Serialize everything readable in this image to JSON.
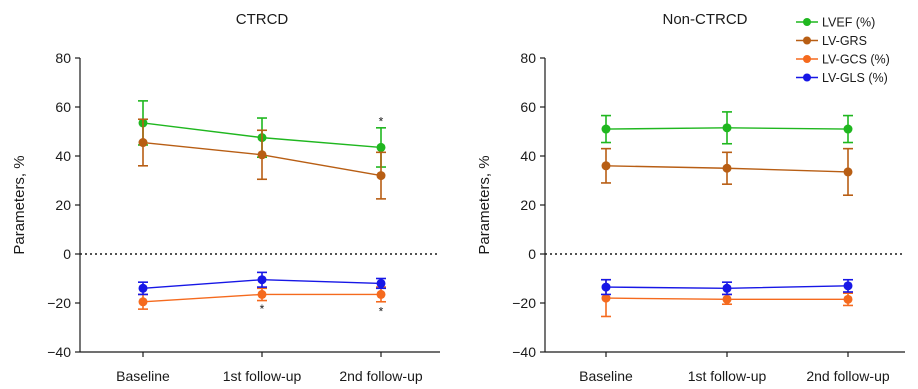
{
  "chart_data": [
    {
      "type": "line",
      "title": "CTRCD",
      "ylabel": "Parameters, %",
      "xlabel": "",
      "categories": [
        "Baseline",
        "1st follow-up",
        "2nd follow-up"
      ],
      "ylim": [
        -40,
        80
      ],
      "yticks": [
        -40,
        -20,
        0,
        20,
        40,
        60,
        80
      ],
      "yticklabels": [
        "−40",
        "−20",
        "0",
        "20",
        "40",
        "60",
        "80"
      ],
      "zero_line": "dotted",
      "series": [
        {
          "name": "LVEF (%)",
          "color": "#1fb71f",
          "values": [
            53.5,
            47.5,
            43.5
          ],
          "err": [
            9,
            8,
            8
          ]
        },
        {
          "name": "LV-GRS",
          "color": "#b85e14",
          "values": [
            45.5,
            40.5,
            32
          ],
          "err": [
            9.5,
            10,
            9.5
          ]
        },
        {
          "name": "LV-GCS (%)",
          "color": "#f56a1e",
          "values": [
            -19.5,
            -16.5,
            -16.5
          ],
          "err": [
            3,
            2.5,
            3
          ]
        },
        {
          "name": "LV-GLS (%)",
          "color": "#1717e6",
          "values": [
            -14,
            -10.5,
            -12
          ],
          "err": [
            2.5,
            3,
            2
          ]
        }
      ],
      "annotations": [
        {
          "text": "*",
          "category": "2nd follow-up",
          "y": 54
        },
        {
          "text": "*",
          "category": "1st follow-up",
          "y": -22.5
        },
        {
          "text": "*",
          "category": "2nd follow-up",
          "y": -23.5
        }
      ]
    },
    {
      "type": "line",
      "title": "Non-CTRCD",
      "ylabel": "Parameters, %",
      "xlabel": "",
      "categories": [
        "Baseline",
        "1st follow-up",
        "2nd follow-up"
      ],
      "ylim": [
        -40,
        80
      ],
      "yticks": [
        -40,
        -20,
        0,
        20,
        40,
        60,
        80
      ],
      "yticklabels": [
        "−40",
        "−20",
        "0",
        "20",
        "40",
        "60",
        "80"
      ],
      "zero_line": "dotted",
      "series": [
        {
          "name": "LVEF (%)",
          "color": "#1fb71f",
          "values": [
            51,
            51.5,
            51
          ],
          "err": [
            5.5,
            6.5,
            5.5
          ]
        },
        {
          "name": "LV-GRS",
          "color": "#b85e14",
          "values": [
            36,
            35,
            33.5
          ],
          "err": [
            7,
            6.5,
            9.5
          ]
        },
        {
          "name": "LV-GCS (%)",
          "color": "#f56a1e",
          "values": [
            -18,
            -18.5,
            -18.5
          ],
          "err": [
            7.5,
            2,
            2.5
          ]
        },
        {
          "name": "LV-GLS (%)",
          "color": "#1717e6",
          "values": [
            -13.5,
            -14,
            -13
          ],
          "err": [
            3,
            2.5,
            2.5
          ]
        }
      ],
      "annotations": []
    }
  ],
  "legend": {
    "placement": "top-right",
    "items": [
      {
        "label": "LVEF (%)",
        "color": "#1fb71f"
      },
      {
        "label": "LV-GRS",
        "color": "#b85e14"
      },
      {
        "label": "LV-GCS (%)",
        "color": "#f56a1e"
      },
      {
        "label": "LV-GLS (%)",
        "color": "#1717e6"
      }
    ]
  }
}
